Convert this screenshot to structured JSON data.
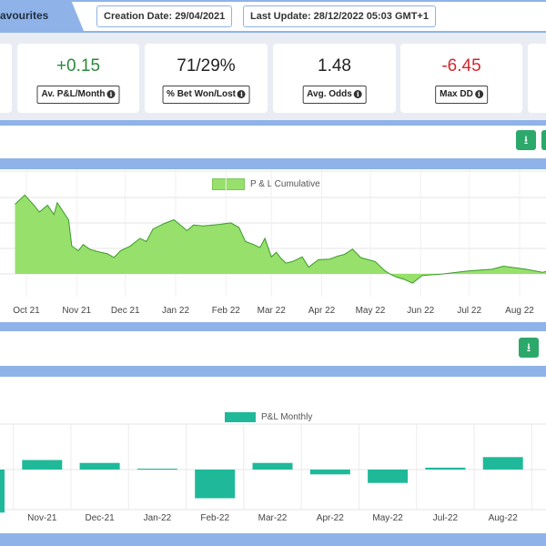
{
  "header": {
    "tab_label": "avourites",
    "creation_date": "Creation Date: 29/04/2021",
    "last_update": "Last Update: 28/12/2022 05:03 GMT+1"
  },
  "stats": [
    {
      "value": "+0.15",
      "label": "Av. P&L/Month",
      "tone": "positive"
    },
    {
      "value": "71/29%",
      "label": "% Bet Won/Lost",
      "tone": "neutral"
    },
    {
      "value": "1.48",
      "label": "Avg. Odds",
      "tone": "neutral"
    },
    {
      "value": "-6.45",
      "label": "Max DD",
      "tone": "negative"
    }
  ],
  "colors": {
    "accent_blue": "#8fb3e8",
    "area_fill": "#97e06c",
    "area_line": "#3a9a2a",
    "monthly_bar": "#1fb99a",
    "download_button": "#2da86b",
    "positive": "#2a8a3a",
    "negative": "#d4262f"
  },
  "icons": {
    "download": "download-icon",
    "info": "info-circle-icon"
  },
  "chart_data": [
    {
      "type": "area",
      "legend": "P & L Cumulative",
      "categories": [
        "Oct 21",
        "Nov 21",
        "Dec 21",
        "Jan 22",
        "Feb 22",
        "Mar 22",
        "Apr 22",
        "May 22",
        "Jun 22",
        "Jul 22",
        "Aug 22"
      ],
      "y_unit_note": "",
      "points": [
        {
          "x": "2021-09-24",
          "y": 22.5
        },
        {
          "x": "2021-09-30",
          "y": 25.5
        },
        {
          "x": "2021-10-06",
          "y": 22.0
        },
        {
          "x": "2021-10-09",
          "y": 20.0
        },
        {
          "x": "2021-10-14",
          "y": 22.2
        },
        {
          "x": "2021-10-18",
          "y": 19.2
        },
        {
          "x": "2021-10-20",
          "y": 23.0
        },
        {
          "x": "2021-10-27",
          "y": 17.5
        },
        {
          "x": "2021-10-29",
          "y": 9.0
        },
        {
          "x": "2021-11-02",
          "y": 7.5
        },
        {
          "x": "2021-11-05",
          "y": 9.5
        },
        {
          "x": "2021-11-09",
          "y": 8.0
        },
        {
          "x": "2021-11-14",
          "y": 7.2
        },
        {
          "x": "2021-11-20",
          "y": 6.5
        },
        {
          "x": "2021-11-24",
          "y": 5.3
        },
        {
          "x": "2021-11-28",
          "y": 7.5
        },
        {
          "x": "2021-12-04",
          "y": 9.0
        },
        {
          "x": "2021-12-10",
          "y": 11.5
        },
        {
          "x": "2021-12-14",
          "y": 10.5
        },
        {
          "x": "2021-12-18",
          "y": 14.5
        },
        {
          "x": "2021-12-25",
          "y": 16.3
        },
        {
          "x": "2021-12-31",
          "y": 17.5
        },
        {
          "x": "2022-01-08",
          "y": 14.0
        },
        {
          "x": "2022-01-12",
          "y": 15.8
        },
        {
          "x": "2022-01-18",
          "y": 15.5
        },
        {
          "x": "2022-01-28",
          "y": 16.0
        },
        {
          "x": "2022-02-04",
          "y": 16.5
        },
        {
          "x": "2022-02-09",
          "y": 15.0
        },
        {
          "x": "2022-02-13",
          "y": 10.5
        },
        {
          "x": "2022-02-18",
          "y": 9.5
        },
        {
          "x": "2022-02-22",
          "y": 8.5
        },
        {
          "x": "2022-02-25",
          "y": 11.5
        },
        {
          "x": "2022-03-01",
          "y": 5.5
        },
        {
          "x": "2022-03-04",
          "y": 7.0
        },
        {
          "x": "2022-03-07",
          "y": 5.0
        },
        {
          "x": "2022-03-10",
          "y": 3.5
        },
        {
          "x": "2022-03-14",
          "y": 4.0
        },
        {
          "x": "2022-03-20",
          "y": 5.5
        },
        {
          "x": "2022-03-24",
          "y": 2.2
        },
        {
          "x": "2022-03-30",
          "y": 4.6
        },
        {
          "x": "2022-04-06",
          "y": 4.8
        },
        {
          "x": "2022-04-11",
          "y": 5.8
        },
        {
          "x": "2022-04-15",
          "y": 6.3
        },
        {
          "x": "2022-04-20",
          "y": 8.0
        },
        {
          "x": "2022-04-25",
          "y": 5.3
        },
        {
          "x": "2022-04-29",
          "y": 4.7
        },
        {
          "x": "2022-05-04",
          "y": 4.0
        },
        {
          "x": "2022-05-10",
          "y": 1.0
        },
        {
          "x": "2022-05-13",
          "y": 0.0
        },
        {
          "x": "2022-05-17",
          "y": -1.0
        },
        {
          "x": "2022-05-22",
          "y": -1.8
        },
        {
          "x": "2022-05-27",
          "y": -3.0
        },
        {
          "x": "2022-06-02",
          "y": -0.5
        },
        {
          "x": "2022-06-15",
          "y": 0.0
        },
        {
          "x": "2022-07-01",
          "y": 1.0
        },
        {
          "x": "2022-07-15",
          "y": 1.5
        },
        {
          "x": "2022-07-22",
          "y": 2.5
        },
        {
          "x": "2022-08-05",
          "y": 1.5
        },
        {
          "x": "2022-08-15",
          "y": 0.5
        },
        {
          "x": "2022-08-19",
          "y": 1.0
        },
        {
          "x": "2022-08-22",
          "y": -0.5
        },
        {
          "x": "2022-08-28",
          "y": 4.0
        }
      ]
    },
    {
      "type": "bar",
      "legend": "P&L Monthly",
      "categories": [
        "Oct-21",
        "Nov-21",
        "Dec-21",
        "Jan-22",
        "Feb-22",
        "Mar-22",
        "Apr-22",
        "May-22",
        "Jul-22",
        "Aug-22"
      ],
      "tick_labels": [
        "Nov-21",
        "Dec-21",
        "Jan-22",
        "Feb-22",
        "Mar-22",
        "Apr-22",
        "May-22",
        "Jul-22",
        "Aug-22"
      ],
      "values": [
        -4.5,
        1.0,
        0.7,
        0.1,
        -3.0,
        0.7,
        -0.5,
        -1.4,
        0.2,
        1.3
      ],
      "ylim": [
        -5,
        2.2
      ]
    }
  ]
}
